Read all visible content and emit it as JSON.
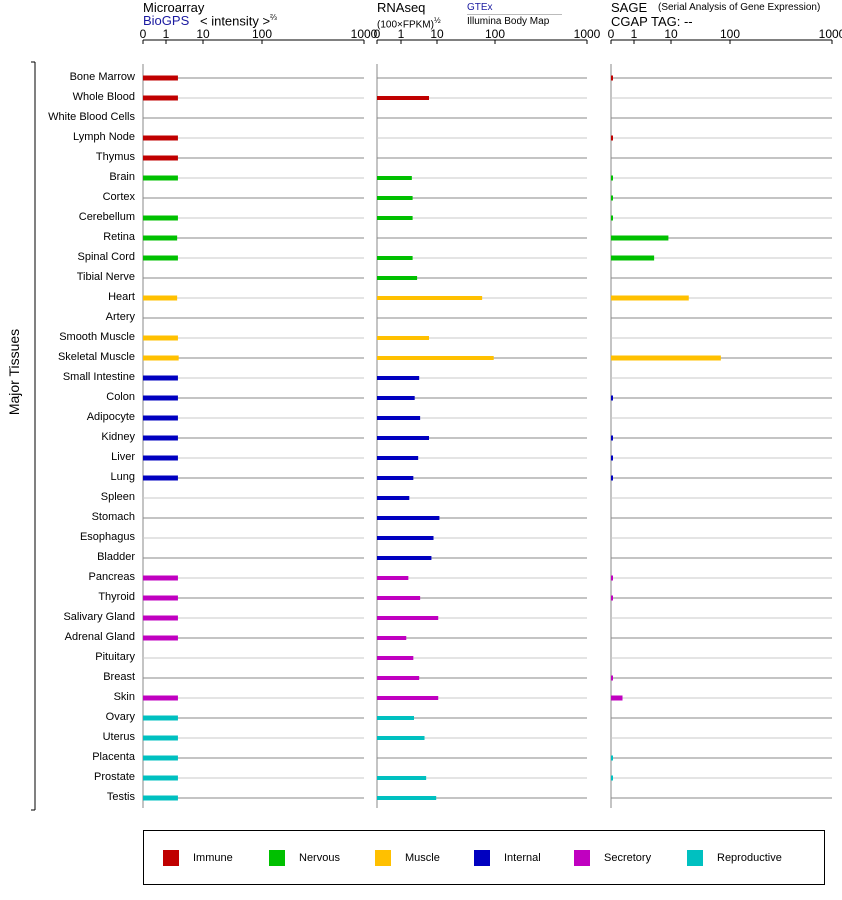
{
  "headers": {
    "microarray": {
      "title": "Microarray",
      "source": "BioGPS",
      "unit_prefix": "< intensity >",
      "unit_exp": "⅔"
    },
    "rnaseq": {
      "title": "RNAseq",
      "unit_prefix": "(100×FPKM)",
      "unit_exp": "½",
      "source1": "GTEx",
      "source2": "Illumina Body Map"
    },
    "sage": {
      "title": "SAGE",
      "subtitle": "(Serial Analysis of Gene Expression)",
      "tag": "CGAP TAG:  --"
    }
  },
  "y_title": "Major Tissues",
  "legend": [
    {
      "label": "Immune",
      "color": "#c00000"
    },
    {
      "label": "Nervous",
      "color": "#00c000"
    },
    {
      "label": "Muscle",
      "color": "#ffc000"
    },
    {
      "label": "Internal",
      "color": "#0000c0"
    },
    {
      "label": "Secretory",
      "color": "#c000c0"
    },
    {
      "label": "Reproductive",
      "color": "#00c0c0"
    }
  ],
  "chart_data": {
    "type": "bar",
    "orientation": "horizontal",
    "x_scale": "log-like (0,1,10,100,1000)",
    "xlim": [
      0,
      1000
    ],
    "tick_labels": [
      "0",
      "1",
      "10",
      "100",
      "1000"
    ],
    "categories": [
      "Bone Marrow",
      "Whole Blood",
      "White Blood Cells",
      "Lymph Node",
      "Thymus",
      "Brain",
      "Cortex",
      "Cerebellum",
      "Retina",
      "Spinal Cord",
      "Tibial Nerve",
      "Heart",
      "Artery",
      "Smooth Muscle",
      "Skeletal Muscle",
      "Small Intestine",
      "Colon",
      "Adipocyte",
      "Kidney",
      "Liver",
      "Lung",
      "Spleen",
      "Stomach",
      "Esophagus",
      "Bladder",
      "Pancreas",
      "Thyroid",
      "Salivary Gland",
      "Adrenal Gland",
      "Pituitary",
      "Breast",
      "Skin",
      "Ovary",
      "Uterus",
      "Placenta",
      "Prostate",
      "Testis"
    ],
    "groups": [
      "Immune",
      "Immune",
      "Immune",
      "Immune",
      "Immune",
      "Nervous",
      "Nervous",
      "Nervous",
      "Nervous",
      "Nervous",
      "Nervous",
      "Muscle",
      "Muscle",
      "Muscle",
      "Muscle",
      "Internal",
      "Internal",
      "Internal",
      "Internal",
      "Internal",
      "Internal",
      "Internal",
      "Internal",
      "Internal",
      "Internal",
      "Secretory",
      "Secretory",
      "Secretory",
      "Secretory",
      "Secretory",
      "Secretory",
      "Secretory",
      "Reproductive",
      "Reproductive",
      "Reproductive",
      "Reproductive",
      "Reproductive"
    ],
    "series": [
      {
        "name": "Microarray",
        "values": [
          2.1,
          2.1,
          null,
          2.1,
          2.1,
          2.1,
          null,
          2.1,
          2.0,
          2.1,
          null,
          2.0,
          null,
          2.1,
          2.2,
          2.1,
          2.1,
          2.1,
          2.1,
          2.1,
          2.1,
          null,
          null,
          null,
          null,
          2.1,
          2.1,
          2.1,
          2.1,
          null,
          null,
          2.1,
          2.1,
          2.1,
          2.1,
          2.1,
          2.1
        ]
      },
      {
        "name": "RNAseq",
        "values": [
          null,
          6.0,
          null,
          null,
          null,
          2.0,
          2.1,
          2.1,
          null,
          2.1,
          2.8,
          60,
          null,
          6.0,
          95,
          3.2,
          2.4,
          3.4,
          6.0,
          3.0,
          2.2,
          1.7,
          11,
          8.0,
          7.0,
          1.6,
          3.4,
          10.5,
          1.4,
          2.2,
          3.2,
          10.5,
          2.3,
          4.5,
          null,
          5.0,
          9.5
        ]
      },
      {
        "name": "SAGE",
        "values": [
          0.05,
          null,
          null,
          0.05,
          null,
          0.05,
          0.05,
          0.05,
          8.5,
          3.5,
          null,
          20,
          null,
          null,
          70,
          null,
          0.05,
          null,
          0.05,
          0.05,
          0.05,
          null,
          null,
          null,
          null,
          0.05,
          0.05,
          null,
          null,
          null,
          0.05,
          0.5,
          null,
          null,
          0.05,
          0.05,
          null
        ]
      }
    ]
  }
}
